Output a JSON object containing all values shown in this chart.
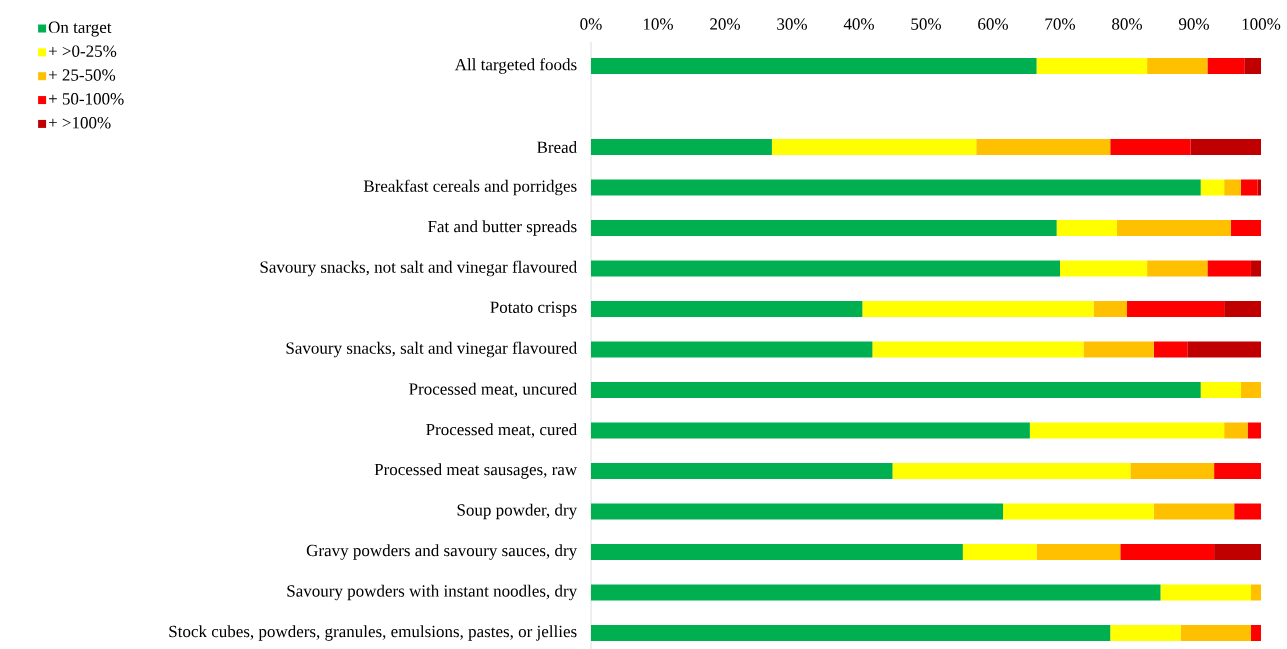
{
  "chart_data": {
    "type": "bar",
    "orientation": "horizontal",
    "stacked": true,
    "legend": "top left",
    "categories": [
      "All targeted foods",
      null,
      "Bread",
      "Breakfast cereals and porridges",
      "Fat and butter spreads",
      "Savoury snacks, not salt and vinegar flavoured",
      "Potato crisps",
      "Savoury snacks, salt and vinegar flavoured",
      "Processed meat, uncured",
      "Processed meat, cured",
      "Processed meat sausages, raw",
      "Soup powder, dry",
      "Gravy powders and savoury sauces, dry",
      "Savoury powders with instant noodles, dry",
      "Stock cubes, powders, granules, emulsions, pastes, or jellies"
    ],
    "xlim": [
      0,
      100
    ],
    "xticks": [
      {
        "value": 0,
        "label": "0%"
      },
      {
        "value": 10,
        "label": "10%"
      },
      {
        "value": 20,
        "label": "20%"
      },
      {
        "value": 30,
        "label": "30%"
      },
      {
        "value": 40,
        "label": "40%"
      },
      {
        "value": 50,
        "label": "50%"
      },
      {
        "value": 60,
        "label": "60%"
      },
      {
        "value": 70,
        "label": "70%"
      },
      {
        "value": 80,
        "label": "80%"
      },
      {
        "value": 90,
        "label": "90%"
      },
      {
        "value": 100,
        "label": "100%"
      }
    ],
    "series": [
      {
        "name": "On target",
        "color": "#00b050",
        "values": [
          66.5,
          null,
          27,
          91,
          69.5,
          70,
          40.5,
          42,
          91,
          65.5,
          45,
          61.5,
          55.5,
          85,
          77.5
        ]
      },
      {
        "name": "+ >0-25%",
        "color": "#ffff00",
        "values": [
          16.5,
          null,
          30.5,
          3.5,
          9,
          13,
          34.5,
          31.5,
          6,
          29,
          35.5,
          22.5,
          11,
          13.5,
          10.5
        ]
      },
      {
        "name": "+ 25-50%",
        "color": "#ffc000",
        "values": [
          9,
          null,
          20,
          2.5,
          17,
          9,
          5,
          10.5,
          3,
          3.5,
          12.5,
          12,
          12.5,
          1.5,
          10.5
        ]
      },
      {
        "name": "+ 50-100%",
        "color": "#ff0000",
        "values": [
          5.5,
          null,
          12,
          2.5,
          4.5,
          6.5,
          14.5,
          5,
          0,
          2,
          7,
          4,
          14,
          0,
          1.5
        ]
      },
      {
        "name": "+ >100%",
        "color": "#c00000",
        "values": [
          2.5,
          null,
          10.5,
          0.5,
          0,
          1.5,
          5.5,
          11,
          0,
          0,
          0,
          0,
          7,
          0,
          0
        ]
      }
    ]
  }
}
